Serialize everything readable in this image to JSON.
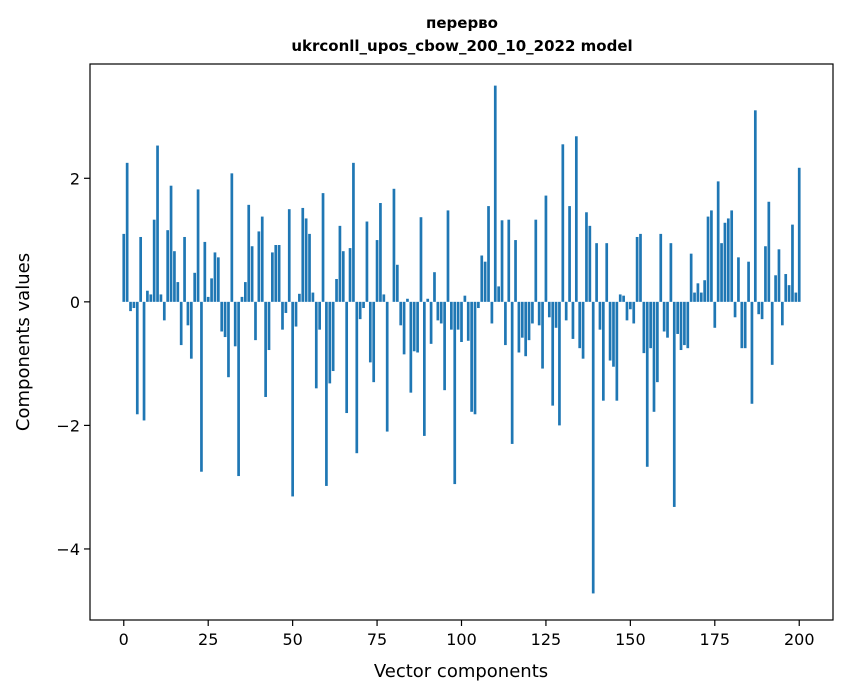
{
  "chart_data": {
    "type": "bar",
    "title_line1": "перерво",
    "title_line2": "ukrconll_upos_cbow_200_10_2022 model",
    "xlabel": "Vector components",
    "ylabel": "Components values",
    "xlim": [
      -10,
      210
    ],
    "ylim": [
      -5.15,
      3.85
    ],
    "xticks": [
      0,
      25,
      50,
      75,
      100,
      125,
      150,
      175,
      200
    ],
    "xtick_labels": [
      "0",
      "25",
      "50",
      "75",
      "100",
      "125",
      "150",
      "175",
      "200"
    ],
    "yticks": [
      -4,
      -2,
      0,
      2
    ],
    "ytick_labels": [
      "−4",
      "−2",
      "0",
      "2"
    ],
    "bar_color": "#1f77b4",
    "values": [
      1.1,
      2.25,
      -0.15,
      -0.1,
      -1.82,
      1.05,
      -1.92,
      0.18,
      0.12,
      1.33,
      2.53,
      0.12,
      -0.3,
      1.16,
      1.88,
      0.82,
      0.32,
      -0.7,
      1.05,
      -0.38,
      -0.92,
      0.47,
      1.82,
      -2.75,
      0.97,
      0.08,
      0.38,
      0.8,
      0.72,
      -0.48,
      -0.57,
      -1.22,
      2.08,
      -0.72,
      -2.82,
      0.08,
      0.32,
      1.57,
      0.9,
      -0.62,
      1.14,
      1.38,
      -1.54,
      -0.78,
      0.8,
      0.92,
      0.92,
      -0.45,
      -0.18,
      1.5,
      -3.15,
      -0.4,
      0.13,
      1.52,
      1.35,
      1.1,
      0.15,
      -1.4,
      -0.45,
      1.76,
      -2.98,
      -1.32,
      -1.12,
      0.37,
      1.23,
      0.82,
      -1.8,
      0.87,
      2.25,
      -2.45,
      -0.28,
      -0.1,
      1.3,
      -0.98,
      -1.3,
      1.0,
      1.6,
      0.12,
      -2.1,
      0.0,
      1.83,
      0.6,
      -0.38,
      -0.85,
      0.05,
      -1.47,
      -0.8,
      -0.82,
      1.37,
      -2.17,
      0.05,
      -0.68,
      0.48,
      -0.3,
      -0.35,
      -1.43,
      1.48,
      -0.45,
      -2.95,
      -0.45,
      -0.65,
      0.1,
      -0.63,
      -1.78,
      -1.82,
      -0.1,
      0.75,
      0.65,
      1.55,
      -0.35,
      3.5,
      0.25,
      1.32,
      -0.7,
      1.33,
      -2.3,
      1.0,
      -0.82,
      -0.58,
      -0.88,
      -0.62,
      -0.35,
      1.33,
      -0.38,
      -1.08,
      1.72,
      -0.25,
      -1.68,
      -0.42,
      -2.0,
      2.55,
      -0.3,
      1.55,
      -0.6,
      2.68,
      -0.75,
      -0.92,
      1.45,
      1.23,
      -4.72,
      0.95,
      -0.45,
      -1.6,
      0.95,
      -0.95,
      -1.05,
      -1.6,
      0.12,
      0.1,
      -0.3,
      -0.12,
      -0.35,
      1.05,
      1.1,
      -0.83,
      -2.67,
      -0.75,
      -1.78,
      -1.3,
      1.1,
      -0.48,
      -0.58,
      0.95,
      -3.32,
      -0.52,
      -0.78,
      -0.7,
      -0.75,
      0.78,
      0.15,
      0.3,
      0.15,
      0.35,
      1.38,
      1.48,
      -0.42,
      1.95,
      0.95,
      1.28,
      1.35,
      1.48,
      -0.25,
      0.72,
      -0.75,
      -0.75,
      0.65,
      -1.65,
      3.1,
      -0.2,
      -0.28,
      0.9,
      1.62,
      -1.02,
      0.43,
      0.85,
      -0.38,
      0.45,
      0.27,
      1.25,
      0.15,
      2.17
    ]
  }
}
